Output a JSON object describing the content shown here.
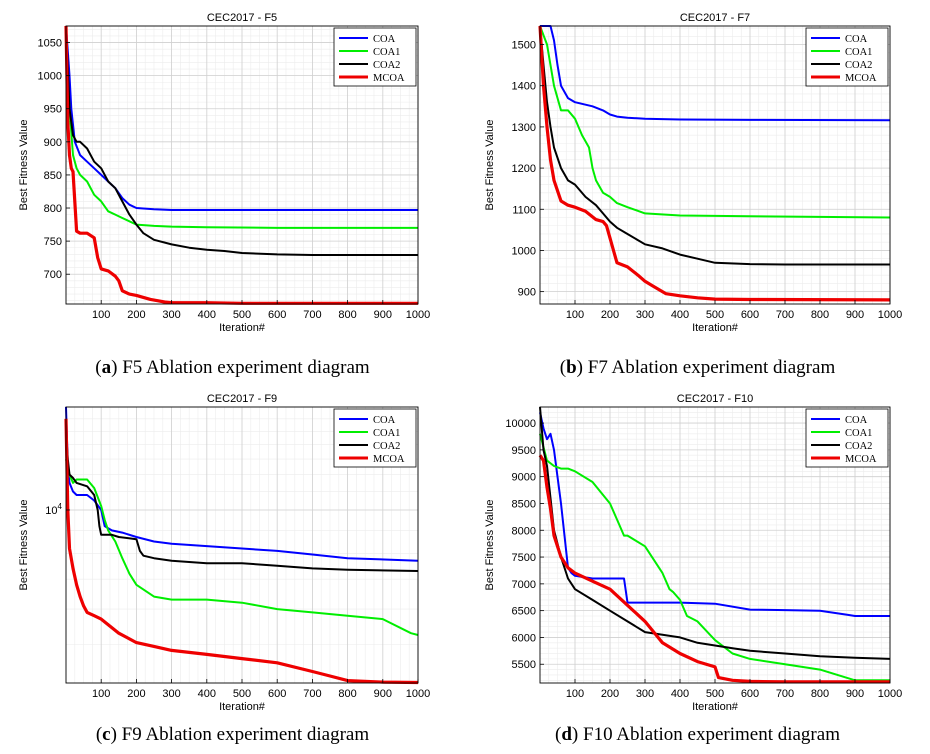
{
  "figure": {
    "captions": [
      {
        "label": "a",
        "text": "F5 Ablation experiment diagram"
      },
      {
        "label": "b",
        "text": "F7 Ablation experiment diagram"
      },
      {
        "label": "c",
        "text": "F9 Ablation experiment diagram"
      },
      {
        "label": "d",
        "text": "F10 Ablation experiment diagram"
      }
    ]
  },
  "chart_data": [
    {
      "type": "line",
      "title": "CEC2017 - F5",
      "xlabel": "Iteration#",
      "ylabel": "Best Fitness Value",
      "xlim": [
        0,
        1000
      ],
      "ylim": [
        655,
        1075
      ],
      "xticks": [
        100,
        200,
        300,
        400,
        500,
        600,
        700,
        800,
        900,
        1000
      ],
      "yticks": [
        700,
        750,
        800,
        850,
        900,
        950,
        1000,
        1050
      ],
      "grid": true,
      "legend_position": "top-right",
      "series": [
        {
          "name": "COA",
          "color": "#0000ff",
          "x": [
            0,
            10,
            15,
            25,
            40,
            60,
            80,
            100,
            120,
            140,
            160,
            180,
            200,
            250,
            300,
            400,
            600,
            1000
          ],
          "y": [
            1075,
            1000,
            950,
            900,
            880,
            870,
            860,
            850,
            840,
            830,
            815,
            805,
            800,
            798,
            797,
            797,
            797,
            797
          ]
        },
        {
          "name": "COA1",
          "color": "#00ee00",
          "x": [
            0,
            10,
            20,
            30,
            40,
            60,
            80,
            100,
            120,
            140,
            160,
            180,
            200,
            250,
            300,
            400,
            600,
            1000
          ],
          "y": [
            1040,
            950,
            880,
            860,
            850,
            840,
            820,
            810,
            795,
            790,
            785,
            780,
            775,
            773,
            772,
            771,
            770,
            770
          ]
        },
        {
          "name": "COA2",
          "color": "#000000",
          "x": [
            0,
            10,
            20,
            30,
            40,
            60,
            80,
            100,
            120,
            140,
            160,
            180,
            200,
            220,
            250,
            300,
            350,
            400,
            450,
            500,
            600,
            700,
            800,
            1000
          ],
          "y": [
            1075,
            950,
            910,
            900,
            900,
            890,
            870,
            860,
            840,
            830,
            810,
            790,
            775,
            762,
            752,
            745,
            740,
            737,
            735,
            732,
            730,
            729,
            729,
            729
          ]
        },
        {
          "name": "MCOA",
          "color": "#ee0000",
          "x": [
            0,
            5,
            10,
            15,
            20,
            30,
            40,
            60,
            80,
            90,
            100,
            120,
            140,
            150,
            160,
            180,
            200,
            220,
            240,
            260,
            280,
            300,
            400,
            500,
            700,
            1000
          ],
          "y": [
            1075,
            930,
            880,
            860,
            855,
            765,
            762,
            762,
            755,
            725,
            708,
            705,
            697,
            690,
            675,
            670,
            668,
            665,
            662,
            660,
            658,
            657,
            657,
            656,
            656,
            656
          ]
        }
      ]
    },
    {
      "type": "line",
      "title": "CEC2017 - F7",
      "xlabel": "Iteration#",
      "ylabel": "Best Fitness Value",
      "xlim": [
        0,
        1000
      ],
      "ylim": [
        870,
        1545
      ],
      "xticks": [
        100,
        200,
        300,
        400,
        500,
        600,
        700,
        800,
        900,
        1000
      ],
      "yticks": [
        900,
        1000,
        1100,
        1200,
        1300,
        1400,
        1500
      ],
      "grid": true,
      "legend_position": "top-right",
      "series": [
        {
          "name": "COA",
          "color": "#0000ff",
          "x": [
            0,
            30,
            40,
            50,
            60,
            80,
            100,
            150,
            180,
            200,
            220,
            250,
            300,
            400,
            600,
            1000
          ],
          "y": [
            1545,
            1545,
            1510,
            1450,
            1400,
            1370,
            1360,
            1350,
            1340,
            1330,
            1325,
            1322,
            1320,
            1318,
            1317,
            1316
          ]
        },
        {
          "name": "COA1",
          "color": "#00ee00",
          "x": [
            0,
            20,
            30,
            40,
            60,
            80,
            100,
            120,
            140,
            150,
            160,
            180,
            200,
            220,
            250,
            300,
            400,
            600,
            1000
          ],
          "y": [
            1545,
            1500,
            1450,
            1400,
            1340,
            1340,
            1320,
            1280,
            1250,
            1200,
            1170,
            1140,
            1130,
            1115,
            1105,
            1090,
            1085,
            1083,
            1080
          ]
        },
        {
          "name": "COA2",
          "color": "#000000",
          "x": [
            0,
            10,
            20,
            30,
            40,
            60,
            80,
            100,
            130,
            160,
            180,
            200,
            220,
            250,
            300,
            350,
            400,
            450,
            500,
            600,
            700,
            1000
          ],
          "y": [
            1545,
            1450,
            1360,
            1300,
            1250,
            1200,
            1170,
            1160,
            1130,
            1110,
            1090,
            1070,
            1055,
            1040,
            1015,
            1005,
            990,
            980,
            970,
            967,
            966,
            966
          ]
        },
        {
          "name": "MCOA",
          "color": "#ee0000",
          "x": [
            0,
            10,
            20,
            30,
            40,
            60,
            80,
            100,
            130,
            160,
            180,
            190,
            200,
            210,
            220,
            250,
            280,
            300,
            320,
            340,
            360,
            400,
            450,
            500,
            600,
            1000
          ],
          "y": [
            1545,
            1400,
            1300,
            1220,
            1170,
            1120,
            1110,
            1105,
            1095,
            1075,
            1070,
            1060,
            1030,
            1000,
            970,
            960,
            940,
            925,
            915,
            905,
            895,
            890,
            885,
            882,
            881,
            880
          ]
        }
      ]
    },
    {
      "type": "line",
      "title": "CEC2017 - F9",
      "xlabel": "Iteration#",
      "ylabel": "Best Fitness Value",
      "xlim": [
        0,
        1000
      ],
      "ylim": [
        4100,
        17000
      ],
      "yscale": "log",
      "xticks": [
        100,
        200,
        300,
        400,
        500,
        600,
        700,
        800,
        900,
        1000
      ],
      "yticks": [
        10000
      ],
      "yticklabels": [
        "10^4"
      ],
      "grid": true,
      "legend_position": "top-right",
      "series": [
        {
          "name": "COA",
          "color": "#0000ff",
          "x": [
            0,
            5,
            10,
            20,
            30,
            60,
            80,
            100,
            110,
            130,
            160,
            200,
            250,
            300,
            400,
            500,
            600,
            700,
            800,
            1000
          ],
          "y": [
            17000,
            12500,
            11500,
            11000,
            10800,
            10800,
            10500,
            10000,
            9200,
            9000,
            8900,
            8700,
            8500,
            8400,
            8300,
            8200,
            8100,
            7950,
            7800,
            7700
          ]
        },
        {
          "name": "COA1",
          "color": "#00ee00",
          "x": [
            0,
            10,
            20,
            30,
            60,
            80,
            100,
            110,
            120,
            140,
            160,
            180,
            200,
            250,
            300,
            400,
            500,
            600,
            700,
            800,
            900,
            980,
            1000
          ],
          "y": [
            13000,
            12000,
            11500,
            11700,
            11700,
            11200,
            10200,
            9500,
            9000,
            8500,
            7800,
            7200,
            6800,
            6400,
            6300,
            6300,
            6200,
            6000,
            5900,
            5800,
            5700,
            5300,
            5250
          ]
        },
        {
          "name": "COA2",
          "color": "#000000",
          "x": [
            0,
            5,
            10,
            20,
            30,
            60,
            80,
            90,
            95,
            100,
            130,
            150,
            200,
            210,
            220,
            250,
            300,
            400,
            500,
            600,
            700,
            800,
            1000
          ],
          "y": [
            15000,
            13000,
            12000,
            11800,
            11500,
            11300,
            10800,
            10000,
            9200,
            8800,
            8800,
            8700,
            8600,
            8100,
            7900,
            7800,
            7700,
            7600,
            7600,
            7500,
            7400,
            7350,
            7300
          ]
        },
        {
          "name": "MCOA",
          "color": "#ee0000",
          "x": [
            0,
            5,
            10,
            20,
            30,
            40,
            50,
            60,
            80,
            100,
            150,
            200,
            250,
            300,
            400,
            500,
            600,
            700,
            750,
            800,
            900,
            1000
          ],
          "y": [
            16000,
            10000,
            8200,
            7400,
            6800,
            6400,
            6100,
            5900,
            5800,
            5700,
            5300,
            5050,
            4950,
            4850,
            4750,
            4650,
            4550,
            4350,
            4250,
            4150,
            4120,
            4110
          ]
        }
      ]
    },
    {
      "type": "line",
      "title": "CEC2017 - F10",
      "xlabel": "Iteration#",
      "ylabel": "Best Fitness Value",
      "xlim": [
        0,
        1000
      ],
      "ylim": [
        5150,
        10300
      ],
      "xticks": [
        100,
        200,
        300,
        400,
        500,
        600,
        700,
        800,
        900,
        1000
      ],
      "yticks": [
        5500,
        6000,
        6500,
        7000,
        7500,
        8000,
        8500,
        9000,
        9500,
        10000
      ],
      "grid": true,
      "legend_position": "top-right",
      "series": [
        {
          "name": "COA",
          "color": "#0000ff",
          "x": [
            0,
            10,
            20,
            30,
            40,
            50,
            60,
            70,
            80,
            90,
            100,
            150,
            200,
            240,
            250,
            300,
            400,
            500,
            600,
            700,
            800,
            880,
            900,
            1000
          ],
          "y": [
            10200,
            9900,
            9700,
            9800,
            9500,
            9000,
            8500,
            7900,
            7300,
            7200,
            7150,
            7100,
            7100,
            7100,
            6650,
            6650,
            6650,
            6630,
            6520,
            6510,
            6500,
            6420,
            6400,
            6400
          ]
        },
        {
          "name": "COA1",
          "color": "#00ee00",
          "x": [
            0,
            20,
            40,
            60,
            80,
            100,
            150,
            200,
            220,
            240,
            250,
            300,
            350,
            370,
            380,
            400,
            420,
            450,
            500,
            550,
            600,
            700,
            800,
            900,
            1000
          ],
          "y": [
            9800,
            9300,
            9200,
            9150,
            9150,
            9100,
            8900,
            8500,
            8200,
            7900,
            7900,
            7700,
            7200,
            6900,
            6850,
            6700,
            6400,
            6300,
            5950,
            5700,
            5600,
            5500,
            5400,
            5200,
            5200
          ]
        },
        {
          "name": "COA2",
          "color": "#000000",
          "x": [
            0,
            10,
            20,
            30,
            40,
            60,
            80,
            100,
            150,
            200,
            250,
            300,
            350,
            400,
            450,
            500,
            550,
            600,
            700,
            800,
            900,
            1000
          ],
          "y": [
            10300,
            9500,
            9200,
            8600,
            8000,
            7500,
            7100,
            6900,
            6700,
            6500,
            6300,
            6100,
            6050,
            6000,
            5900,
            5850,
            5800,
            5750,
            5700,
            5650,
            5620,
            5600
          ]
        },
        {
          "name": "MCOA",
          "color": "#ee0000",
          "x": [
            0,
            10,
            20,
            30,
            40,
            60,
            80,
            100,
            150,
            200,
            250,
            300,
            350,
            400,
            450,
            500,
            510,
            550,
            600,
            700,
            800,
            1000
          ],
          "y": [
            9400,
            9300,
            8800,
            8400,
            7900,
            7500,
            7300,
            7200,
            7050,
            6900,
            6600,
            6300,
            5900,
            5700,
            5550,
            5450,
            5250,
            5200,
            5180,
            5170,
            5170,
            5170
          ]
        }
      ]
    }
  ]
}
